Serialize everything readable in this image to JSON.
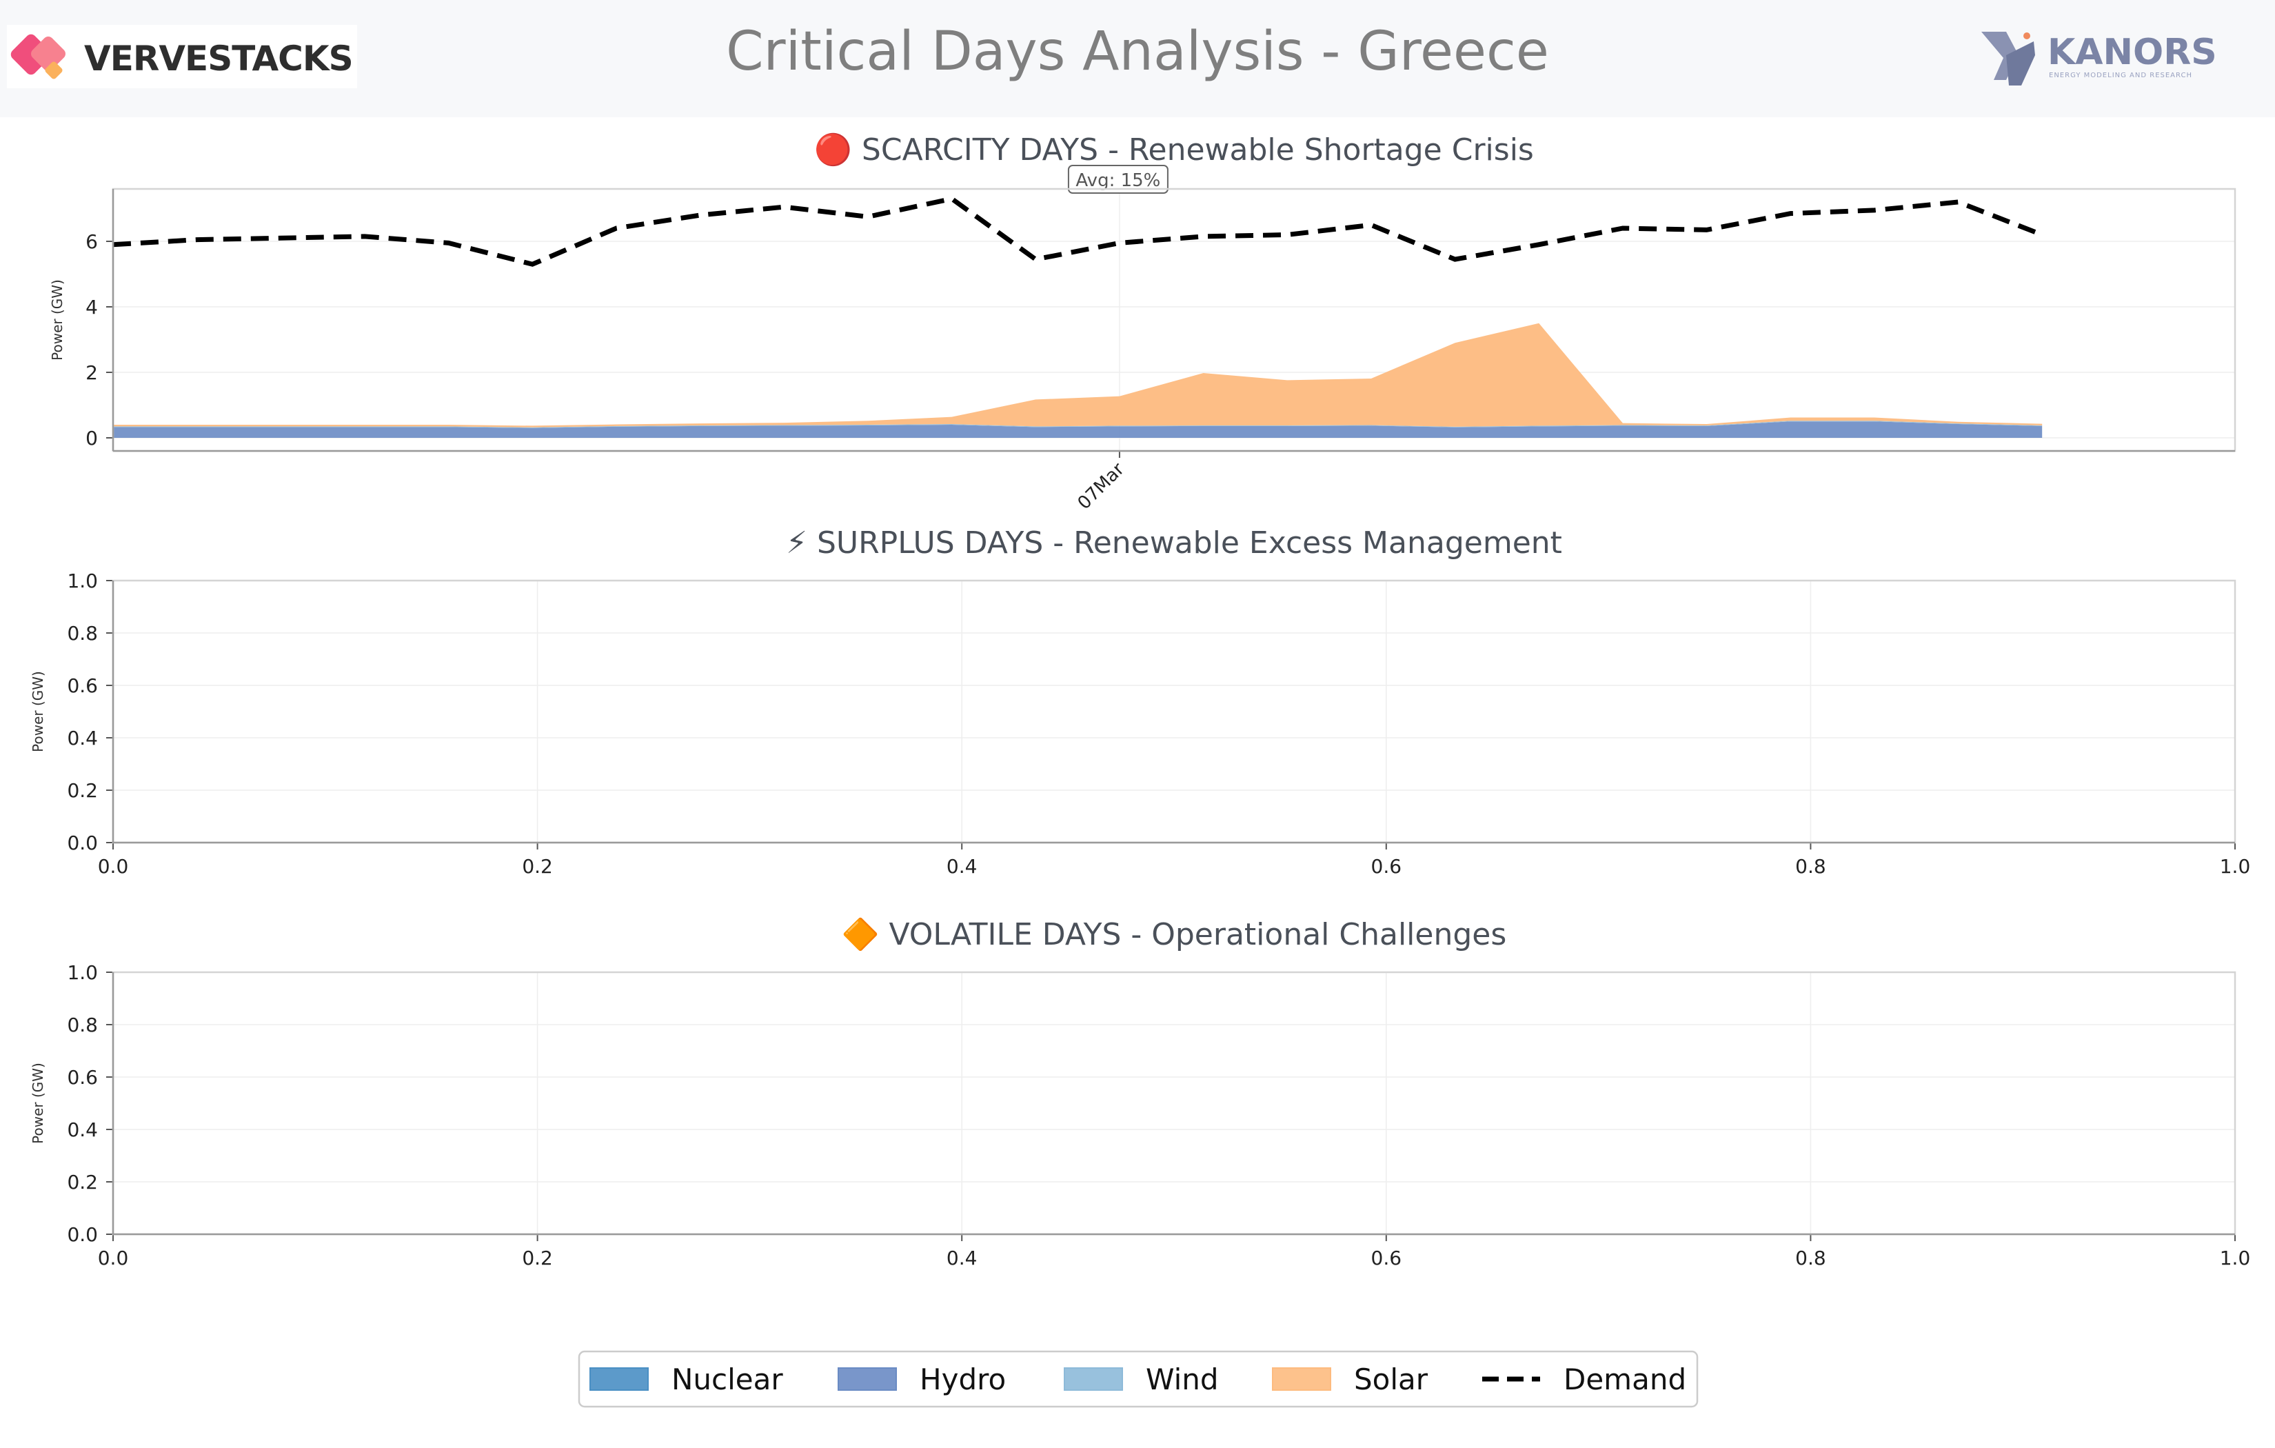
{
  "header": {
    "title": "Critical Days Analysis - Greece",
    "logo_left_text": "VERVESTACKS",
    "logo_right_text": "KANORS",
    "logo_right_subtext": "ENERGY MODELING AND RESEARCH"
  },
  "colors": {
    "nuclear": "#4a8fc4",
    "hydro": "#6a8bc4",
    "wind": "#8dbad9",
    "solar": "#fdbb7f",
    "demand": "#000000"
  },
  "chart_data": [
    {
      "type": "area",
      "title": "🔴 SCARCITY DAYS - Renewable Shortage Crisis",
      "ylabel": "Power (GW)",
      "ylim": [
        -0.4,
        7.6
      ],
      "yticks": [
        0,
        2,
        4,
        6
      ],
      "x": [
        0,
        1,
        2,
        3,
        4,
        5,
        6,
        7,
        8,
        9,
        10,
        11,
        12,
        13,
        14,
        15,
        16,
        17,
        18,
        19,
        20,
        21,
        22,
        23
      ],
      "xlim": [
        0,
        25.3
      ],
      "xtick_labels": [
        {
          "x": 12.0,
          "label": "07Mar"
        }
      ],
      "annotation": "Avg: 15%",
      "grid": true,
      "series": [
        {
          "name": "Nuclear",
          "values": [
            0,
            0,
            0,
            0,
            0,
            0,
            0,
            0,
            0,
            0,
            0,
            0,
            0,
            0,
            0,
            0,
            0,
            0,
            0,
            0,
            0,
            0,
            0,
            0
          ]
        },
        {
          "name": "Hydro",
          "values": [
            0.33,
            0.33,
            0.33,
            0.33,
            0.33,
            0.3,
            0.34,
            0.36,
            0.37,
            0.38,
            0.4,
            0.33,
            0.35,
            0.36,
            0.36,
            0.37,
            0.32,
            0.35,
            0.37,
            0.36,
            0.5,
            0.5,
            0.42,
            0.36
          ]
        },
        {
          "name": "Wind",
          "values": [
            0.02,
            0.02,
            0.02,
            0.02,
            0.02,
            0.02,
            0.02,
            0.02,
            0.02,
            0.02,
            0.02,
            0.02,
            0.02,
            0.02,
            0.02,
            0.02,
            0.02,
            0.02,
            0.02,
            0.02,
            0.02,
            0.02,
            0.02,
            0.02
          ]
        },
        {
          "name": "Solar",
          "values": [
            0.05,
            0.05,
            0.05,
            0.05,
            0.05,
            0.05,
            0.05,
            0.06,
            0.07,
            0.12,
            0.22,
            0.82,
            0.9,
            1.6,
            1.38,
            1.42,
            2.56,
            3.13,
            0.06,
            0.04,
            0.1,
            0.1,
            0.05,
            0.05
          ]
        },
        {
          "name": "Demand",
          "values": [
            5.9,
            6.05,
            6.1,
            6.15,
            5.95,
            5.3,
            6.4,
            6.8,
            7.05,
            6.75,
            7.3,
            5.45,
            5.95,
            6.15,
            6.2,
            6.5,
            5.45,
            5.9,
            6.4,
            6.35,
            6.85,
            6.95,
            7.2,
            6.2
          ]
        }
      ]
    },
    {
      "type": "area",
      "title": "⚡ SURPLUS DAYS - Renewable Excess Management",
      "ylabel": "Power (GW)",
      "xlim": [
        0,
        1
      ],
      "ylim": [
        0,
        1
      ],
      "xticks": [
        "0.0",
        "0.2",
        "0.4",
        "0.6",
        "0.8",
        "1.0"
      ],
      "yticks": [
        "0.0",
        "0.2",
        "0.4",
        "0.6",
        "0.8",
        "1.0"
      ],
      "grid": true,
      "series": []
    },
    {
      "type": "area",
      "title": "🔶 VOLATILE DAYS - Operational Challenges",
      "ylabel": "Power (GW)",
      "xlim": [
        0,
        1
      ],
      "ylim": [
        0,
        1
      ],
      "xticks": [
        "0.0",
        "0.2",
        "0.4",
        "0.6",
        "0.8",
        "1.0"
      ],
      "yticks": [
        "0.0",
        "0.2",
        "0.4",
        "0.6",
        "0.8",
        "1.0"
      ],
      "grid": true,
      "series": []
    }
  ],
  "legend": {
    "placement": "bottom-center",
    "items": [
      "Nuclear",
      "Hydro",
      "Wind",
      "Solar",
      "Demand"
    ]
  }
}
